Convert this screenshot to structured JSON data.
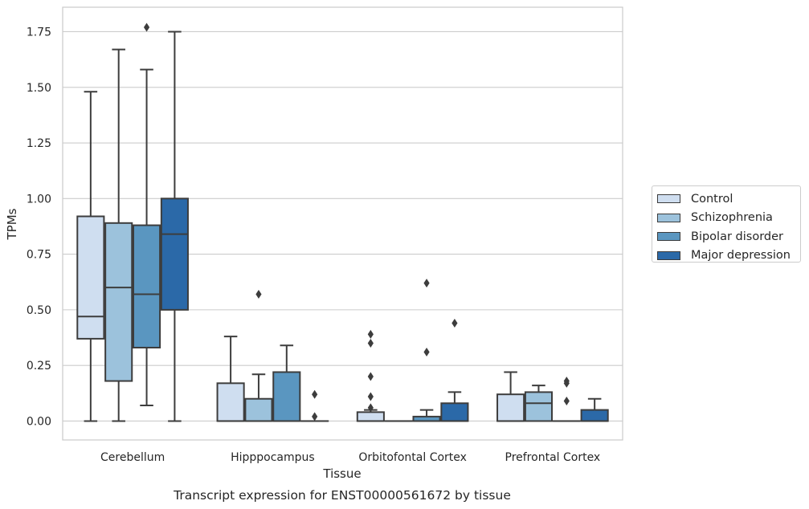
{
  "chart_data": {
    "type": "boxplot",
    "title": "Transcript expression for ENST00000561672 by tissue",
    "xlabel": "Tissue",
    "ylabel": "TPMs",
    "ylim": [
      -0.085,
      1.86
    ],
    "yticks": [
      0.0,
      0.25,
      0.5,
      0.75,
      1.0,
      1.25,
      1.5,
      1.75
    ],
    "ytick_labels": [
      "0.00",
      "0.25",
      "0.50",
      "0.75",
      "1.00",
      "1.25",
      "1.50",
      "1.75"
    ],
    "grid": "horizontal",
    "legend_position": "right",
    "categories": [
      "Cerebellum",
      "Hipppocampus",
      "Orbitofontal Cortex",
      "Prefrontal Cortex"
    ],
    "series": [
      {
        "name": "Control",
        "color": "#cfdef0",
        "boxes": [
          {
            "whislo": 0.0,
            "q1": 0.37,
            "med": 0.47,
            "q3": 0.92,
            "whishi": 1.48,
            "fliers": []
          },
          {
            "whislo": 0.0,
            "q1": 0.0,
            "med": 0.0,
            "q3": 0.17,
            "whishi": 0.38,
            "fliers": []
          },
          {
            "whislo": 0.0,
            "q1": 0.0,
            "med": 0.0,
            "q3": 0.04,
            "whishi": 0.05,
            "fliers": [
              0.39,
              0.35,
              0.2,
              0.11,
              0.06
            ]
          },
          {
            "whislo": 0.0,
            "q1": 0.0,
            "med": 0.0,
            "q3": 0.12,
            "whishi": 0.22,
            "fliers": []
          }
        ]
      },
      {
        "name": "Schizophrenia",
        "color": "#9cc2dc",
        "boxes": [
          {
            "whislo": 0.0,
            "q1": 0.18,
            "med": 0.6,
            "q3": 0.89,
            "whishi": 1.67,
            "fliers": []
          },
          {
            "whislo": 0.0,
            "q1": 0.0,
            "med": 0.0,
            "q3": 0.1,
            "whishi": 0.21,
            "fliers": [
              0.57
            ]
          },
          {
            "whislo": 0.0,
            "q1": 0.0,
            "med": 0.0,
            "q3": 0.0,
            "whishi": 0.0,
            "fliers": []
          },
          {
            "whislo": 0.0,
            "q1": 0.0,
            "med": 0.08,
            "q3": 0.13,
            "whishi": 0.16,
            "fliers": []
          }
        ]
      },
      {
        "name": "Bipolar disorder",
        "color": "#5a96c0",
        "boxes": [
          {
            "whislo": 0.07,
            "q1": 0.33,
            "med": 0.57,
            "q3": 0.88,
            "whishi": 1.58,
            "fliers": [
              1.77
            ]
          },
          {
            "whislo": 0.0,
            "q1": 0.0,
            "med": 0.0,
            "q3": 0.22,
            "whishi": 0.34,
            "fliers": []
          },
          {
            "whislo": 0.0,
            "q1": 0.0,
            "med": 0.0,
            "q3": 0.02,
            "whishi": 0.05,
            "fliers": [
              0.62,
              0.31
            ]
          },
          {
            "whislo": 0.0,
            "q1": 0.0,
            "med": 0.0,
            "q3": 0.0,
            "whishi": 0.0,
            "fliers": [
              0.18,
              0.17,
              0.09
            ]
          }
        ]
      },
      {
        "name": "Major depression",
        "color": "#2b69a8",
        "boxes": [
          {
            "whislo": 0.0,
            "q1": 0.5,
            "med": 0.84,
            "q3": 1.0,
            "whishi": 1.75,
            "fliers": []
          },
          {
            "whislo": 0.0,
            "q1": 0.0,
            "med": 0.0,
            "q3": 0.0,
            "whishi": 0.0,
            "fliers": [
              0.12,
              0.02
            ]
          },
          {
            "whislo": 0.0,
            "q1": 0.0,
            "med": 0.0,
            "q3": 0.08,
            "whishi": 0.13,
            "fliers": [
              0.44
            ]
          },
          {
            "whislo": 0.0,
            "q1": 0.0,
            "med": 0.0,
            "q3": 0.05,
            "whishi": 0.1,
            "fliers": []
          }
        ]
      }
    ]
  }
}
